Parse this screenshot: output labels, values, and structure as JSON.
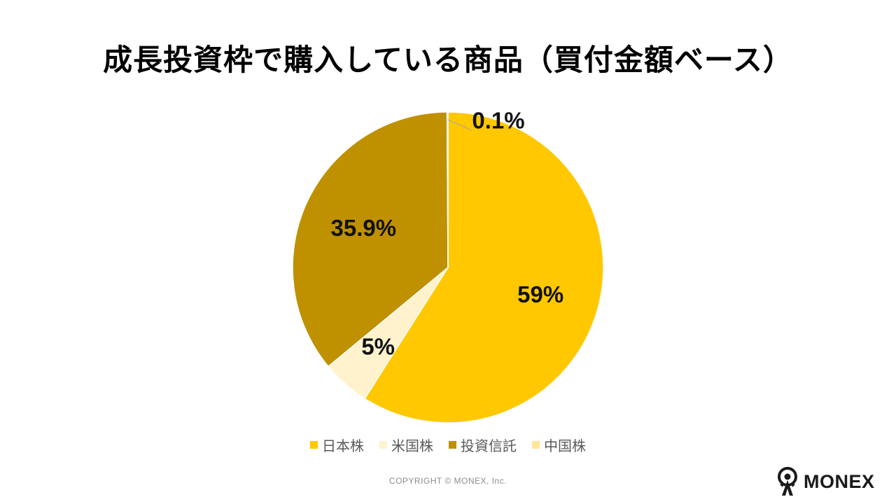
{
  "chart_data": {
    "type": "pie",
    "title": "成長投資枠で購入している商品（買付金額ベース）",
    "categories": [
      "日本株",
      "米国株",
      "投資信託",
      "中国株"
    ],
    "values": [
      59,
      5,
      35.9,
      0.1
    ],
    "labels": [
      "59%",
      "5%",
      "35.9%",
      "0.1%"
    ],
    "colors": [
      "#FFC800",
      "#FFF2CC",
      "#BF9000",
      "#FFE699"
    ],
    "legend_position": "bottom",
    "start_angle": "12 o'clock",
    "direction": "clockwise"
  },
  "footer": {
    "copyright": "COPYRIGHT © MONEX, Inc."
  },
  "logo": {
    "text": "MONEX",
    "icon": "monex-logo-icon"
  }
}
